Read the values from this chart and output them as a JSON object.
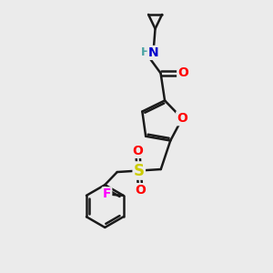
{
  "bg_color": "#ebebeb",
  "bond_color": "#1a1a1a",
  "bond_width": 1.8,
  "atom_colors": {
    "O": "#ff0000",
    "N": "#0000cc",
    "S": "#cccc00",
    "F": "#ff00ff",
    "H": "#4aa3a3",
    "C": "#1a1a1a"
  },
  "font_size": 10,
  "fig_size": [
    3.0,
    3.0
  ],
  "dpi": 100
}
